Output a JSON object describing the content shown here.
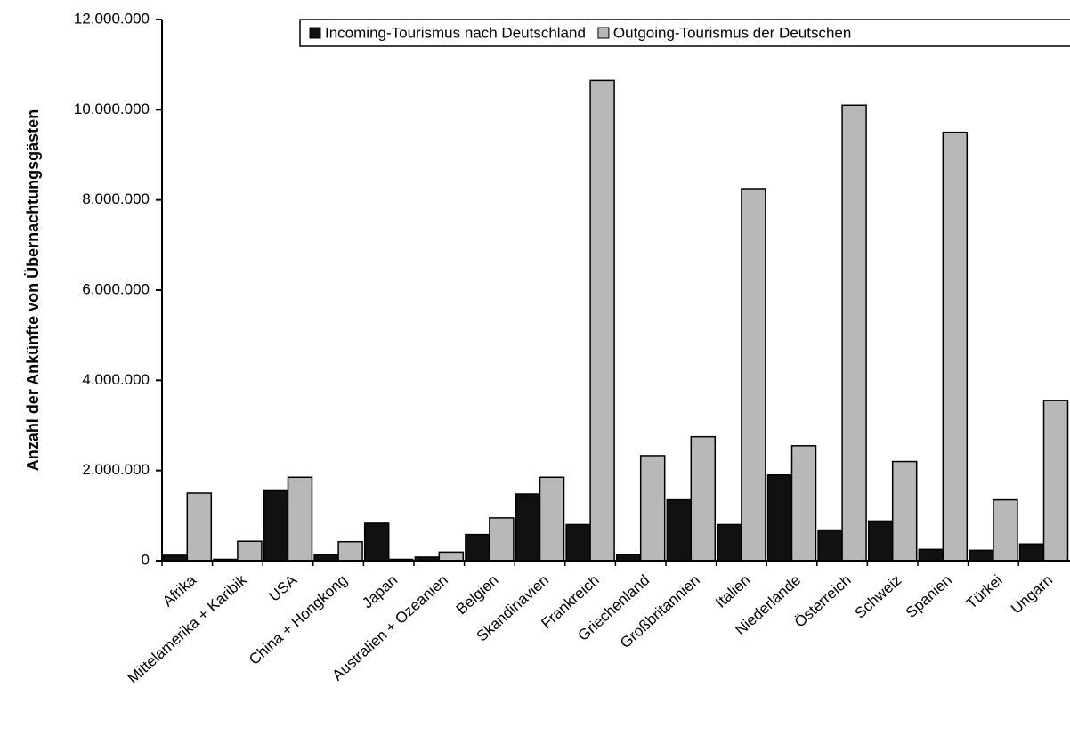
{
  "chart_data": {
    "type": "bar",
    "y_label": "Anzahl der Ankünfte von Übernachtungsgästen",
    "categories": [
      "Afrika",
      "Mittelamerika + Karibik",
      "USA",
      "China + Hongkong",
      "Japan",
      "Australien + Ozeanien",
      "Belgien",
      "Skandinavien",
      "Frankreich",
      "Griechenland",
      "Großbritannien",
      "Italien",
      "Niederlande",
      "Österreich",
      "Schweiz",
      "Spanien",
      "Türkei",
      "Ungarn"
    ],
    "series": [
      {
        "name": "Incoming-Tourismus nach Deutschland",
        "color": "#111111",
        "values": [
          120000,
          30000,
          1550000,
          130000,
          830000,
          80000,
          580000,
          1480000,
          800000,
          130000,
          1350000,
          800000,
          1900000,
          680000,
          880000,
          250000,
          230000,
          370000
        ]
      },
      {
        "name": "Outgoing-Tourismus der Deutschen",
        "color": "#b8b8b8",
        "values": [
          1500000,
          430000,
          1850000,
          420000,
          30000,
          190000,
          950000,
          1850000,
          10650000,
          2330000,
          2750000,
          8250000,
          2550000,
          10100000,
          2200000,
          9500000,
          1350000,
          3550000
        ]
      }
    ],
    "ylim": [
      0,
      12000000
    ],
    "yticks": [
      0,
      {
        "value": 2000000,
        "label": "2.000.000"
      },
      {
        "value": 4000000,
        "label": "4.000.000"
      },
      {
        "value": 6000000,
        "label": "6.000.000"
      },
      {
        "value": 8000000,
        "label": "8.000.000"
      },
      {
        "value": 10000000,
        "label": "10.000.000"
      },
      {
        "value": 12000000,
        "label": "12.000.000"
      }
    ],
    "legend": "top-right"
  }
}
